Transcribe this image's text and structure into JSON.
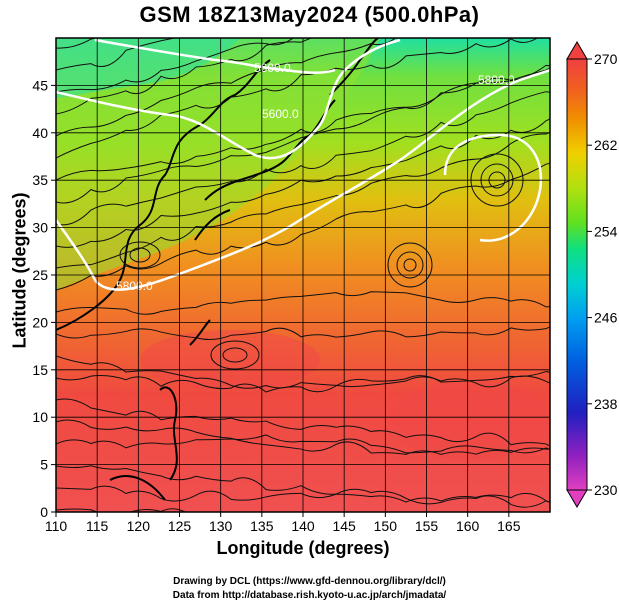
{
  "title": "GSM 18Z13May2024 (500.0hPa)",
  "axes": {
    "xlabel": "Longitude (degrees)",
    "ylabel": "Latitude  (degrees)",
    "x_ticks": [
      "110",
      "115",
      "120",
      "125",
      "130",
      "135",
      "140",
      "145",
      "150",
      "155",
      "160",
      "165"
    ],
    "y_ticks": [
      "0",
      "5",
      "10",
      "15",
      "20",
      "25",
      "30",
      "35",
      "40",
      "45"
    ],
    "xlim": [
      110,
      170
    ],
    "ylim": [
      0,
      50
    ]
  },
  "contours": {
    "labels": [
      "5600.0",
      "5600.0",
      "5800.0",
      "5800.0"
    ]
  },
  "colorbar": {
    "ticks": [
      "270",
      "262",
      "254",
      "246",
      "238",
      "230"
    ],
    "range": [
      230,
      270
    ],
    "colors": [
      "#e040c0",
      "#9020c0",
      "#2020c0",
      "#0060e0",
      "#00a0f0",
      "#00d0d0",
      "#10e080",
      "#60e020",
      "#b0e010",
      "#f0d000",
      "#f09000",
      "#f06020",
      "#f04040"
    ]
  },
  "credits": {
    "line1": "Drawing by DCL (https://www.gfd-dennou.org/library/dcl/)",
    "line2": "Data from http://database.rish.kyoto-u.ac.jp/arch/jmadata/"
  }
}
